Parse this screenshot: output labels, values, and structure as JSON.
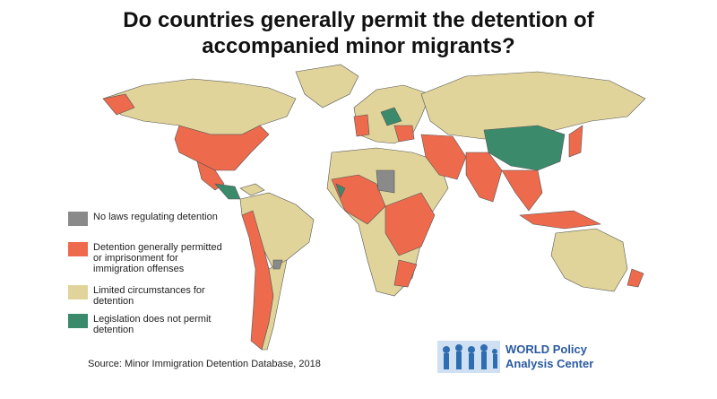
{
  "title": "Do countries generally permit the detention of accompanied minor migrants?",
  "legend": [
    {
      "label": "No laws regulating detention",
      "color": "#8a8a8a"
    },
    {
      "label": "Detention generally permitted or imprisonment for immigration offenses",
      "color": "#ee6a4d"
    },
    {
      "label": "Limited circumstances for detention",
      "color": "#e0d49a"
    },
    {
      "label": "Legislation does not permit detention",
      "color": "#3b8a6c"
    }
  ],
  "source": "Source: Minor Immigration Detention Database, 2018",
  "logo": {
    "line1": "WORLD Policy",
    "line2": "Analysis Center"
  }
}
